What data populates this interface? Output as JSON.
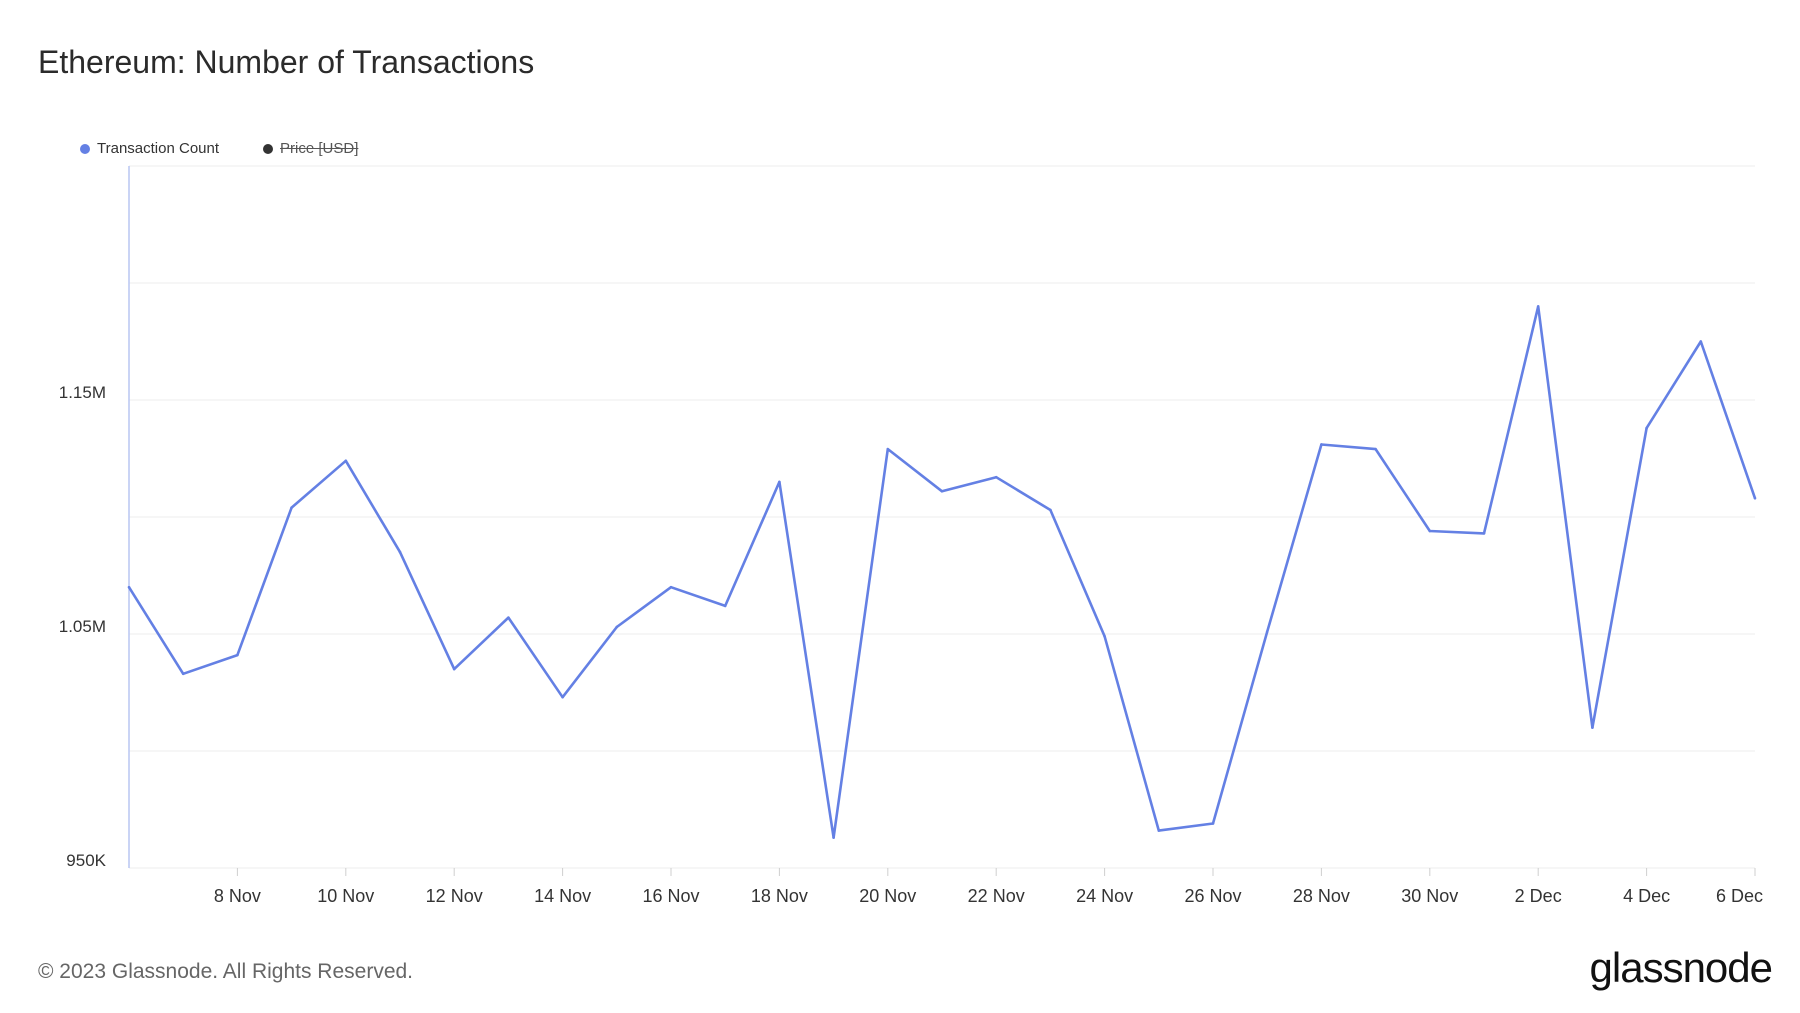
{
  "title": "Ethereum: Number of Transactions",
  "legend": [
    {
      "label": "Transaction Count",
      "color": "#6480e4",
      "enabled": true
    },
    {
      "label": "Price [USD]",
      "color": "#333333",
      "enabled": false
    }
  ],
  "footer": {
    "copyright": "© 2023 Glassnode. All Rights Reserved.",
    "logo": "glassnode"
  },
  "chart_data": {
    "type": "line",
    "title": "Ethereum: Number of Transactions",
    "xlabel": "",
    "ylabel": "",
    "x": [
      "6 Nov",
      "7 Nov",
      "8 Nov",
      "9 Nov",
      "10 Nov",
      "11 Nov",
      "12 Nov",
      "13 Nov",
      "14 Nov",
      "15 Nov",
      "16 Nov",
      "17 Nov",
      "18 Nov",
      "19 Nov",
      "20 Nov",
      "21 Nov",
      "22 Nov",
      "23 Nov",
      "24 Nov",
      "25 Nov",
      "26 Nov",
      "27 Nov",
      "28 Nov",
      "29 Nov",
      "30 Nov",
      "1 Dec",
      "2 Dec",
      "3 Dec",
      "4 Dec",
      "5 Dec",
      "6 Dec"
    ],
    "series": [
      {
        "name": "Transaction Count",
        "color": "#6480e4",
        "values": [
          1070000,
          1033000,
          1041000,
          1104000,
          1124000,
          1085000,
          1035000,
          1057000,
          1023000,
          1053000,
          1070000,
          1062000,
          1115000,
          963000,
          1129000,
          1111000,
          1117000,
          1103000,
          1049000,
          966000,
          969000,
          1051000,
          1131000,
          1129000,
          1094000,
          1093000,
          1190000,
          1010000,
          1138000,
          1175000,
          1108000
        ]
      }
    ],
    "ylim": [
      950000,
      1250000
    ],
    "yticks": [
      {
        "v": 950000,
        "label": "950K"
      },
      {
        "v": 1050000,
        "label": "1.05M"
      },
      {
        "v": 1150000,
        "label": "1.15M"
      }
    ],
    "ygrid": [
      950000,
      1000000,
      1050000,
      1100000,
      1150000,
      1200000,
      1250000
    ],
    "xticks": [
      "8 Nov",
      "10 Nov",
      "12 Nov",
      "14 Nov",
      "16 Nov",
      "18 Nov",
      "20 Nov",
      "22 Nov",
      "24 Nov",
      "26 Nov",
      "28 Nov",
      "30 Nov",
      "2 Dec",
      "4 Dec",
      "6 Dec"
    ],
    "grid": true,
    "legend_position": "top-left"
  }
}
